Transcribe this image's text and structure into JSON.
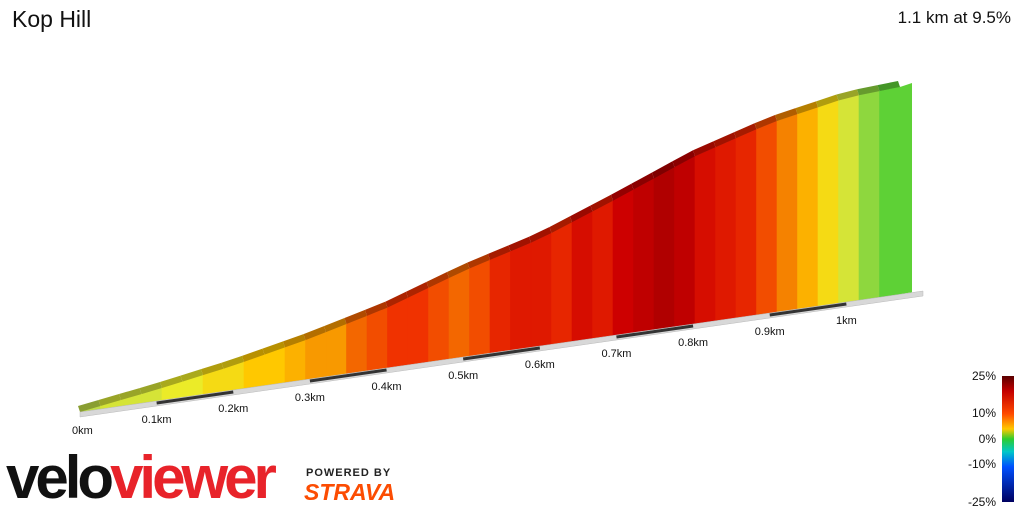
{
  "header": {
    "title": "Kop Hill",
    "summary": "1.1 km at 9.5%"
  },
  "chart_data": {
    "type": "area",
    "title": "Kop Hill",
    "subtitle": "1.1 km at 9.5%",
    "xlabel": "",
    "ylabel": "",
    "x_unit": "km",
    "xlim": [
      0,
      1.1
    ],
    "x_ticks": [
      "0km",
      "0.1km",
      "0.2km",
      "0.3km",
      "0.4km",
      "0.5km",
      "0.6km",
      "0.7km",
      "0.8km",
      "0.9km",
      "1km"
    ],
    "profile": {
      "x_km": [
        0,
        0.1,
        0.2,
        0.3,
        0.4,
        0.5,
        0.6,
        0.7,
        0.8,
        0.9,
        1.0,
        1.07
      ],
      "elevation_rel": [
        0,
        7,
        15,
        25,
        37,
        53,
        66,
        84,
        103,
        117,
        126,
        128
      ]
    },
    "segments": [
      {
        "grade": 3
      },
      {
        "grade": 4
      },
      {
        "grade": 4
      },
      {
        "grade": 4
      },
      {
        "grade": 5
      },
      {
        "grade": 5
      },
      {
        "grade": 6
      },
      {
        "grade": 6
      },
      {
        "grade": 7
      },
      {
        "grade": 7
      },
      {
        "grade": 8
      },
      {
        "grade": 9
      },
      {
        "grade": 9
      },
      {
        "grade": 11
      },
      {
        "grade": 12
      },
      {
        "grade": 13
      },
      {
        "grade": 13
      },
      {
        "grade": 12
      },
      {
        "grade": 11
      },
      {
        "grade": 12
      },
      {
        "grade": 14
      },
      {
        "grade": 15
      },
      {
        "grade": 15
      },
      {
        "grade": 14
      },
      {
        "grade": 16
      },
      {
        "grade": 15
      },
      {
        "grade": 17
      },
      {
        "grade": 18
      },
      {
        "grade": 19
      },
      {
        "grade": 18
      },
      {
        "grade": 16
      },
      {
        "grade": 15
      },
      {
        "grade": 14
      },
      {
        "grade": 12
      },
      {
        "grade": 10
      },
      {
        "grade": 8
      },
      {
        "grade": 6
      },
      {
        "grade": 4
      },
      {
        "grade": 2
      },
      {
        "grade": 1
      }
    ],
    "color_scale": {
      "labels": [
        "25%",
        "10%",
        "0%",
        "-10%",
        "-25%"
      ],
      "values": [
        25,
        10,
        0,
        -10,
        -25
      ]
    },
    "legend_placement": "bottom-right",
    "grid": false
  },
  "brand": {
    "velo": "velo",
    "viewer": "viewer",
    "powered_by": "POWERED BY",
    "strava": "STRAVA"
  },
  "colors": {
    "viewer_red": "#e8232a",
    "strava_orange": "#fc4c02"
  }
}
